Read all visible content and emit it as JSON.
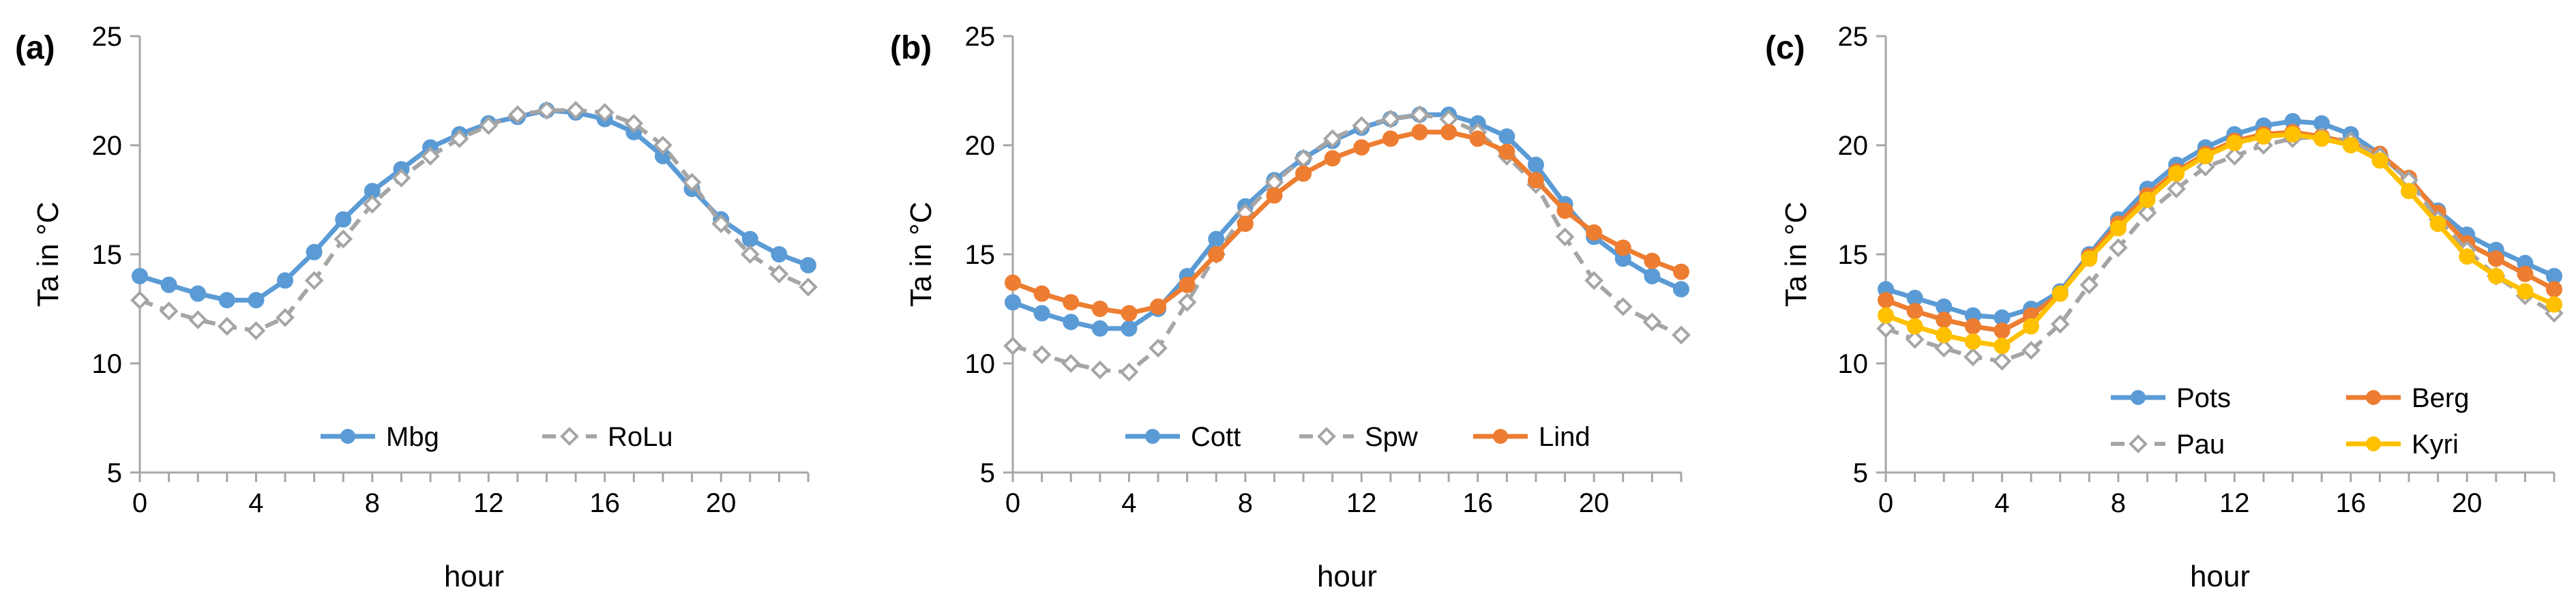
{
  "figure": {
    "panel_count": 3
  },
  "chart_data": [
    {
      "type": "line",
      "panel_label": "(a)",
      "xlabel": "hour",
      "ylabel": "Ta in °C",
      "xlim": [
        0,
        23
      ],
      "ylim": [
        5,
        25
      ],
      "xticks": [
        0,
        4,
        8,
        12,
        16,
        20
      ],
      "yticks": [
        5,
        10,
        15,
        20,
        25
      ],
      "x": [
        0,
        1,
        2,
        3,
        4,
        5,
        6,
        7,
        8,
        9,
        10,
        11,
        12,
        13,
        14,
        15,
        16,
        17,
        18,
        19,
        20,
        21,
        22,
        23
      ],
      "legend_position": "bottom-center",
      "series": [
        {
          "name": "Mbg",
          "color": "#5B9BD5",
          "style": "solid",
          "marker": "circle",
          "values": [
            14.0,
            13.6,
            13.2,
            12.9,
            12.9,
            13.8,
            15.1,
            16.6,
            17.9,
            18.9,
            19.9,
            20.5,
            21.0,
            21.3,
            21.6,
            21.5,
            21.2,
            20.6,
            19.5,
            18.0,
            16.6,
            15.7,
            15.0,
            14.5
          ]
        },
        {
          "name": "RoLu",
          "color": "#A5A5A5",
          "style": "dashed",
          "marker": "diamond-open",
          "values": [
            12.9,
            12.4,
            12.0,
            11.7,
            11.5,
            12.1,
            13.8,
            15.7,
            17.3,
            18.5,
            19.5,
            20.3,
            20.9,
            21.4,
            21.6,
            21.6,
            21.5,
            21.0,
            20.0,
            18.3,
            16.4,
            15.0,
            14.1,
            13.5
          ]
        }
      ]
    },
    {
      "type": "line",
      "panel_label": "(b)",
      "xlabel": "hour",
      "ylabel": "Ta in °C",
      "xlim": [
        0,
        23
      ],
      "ylim": [
        5,
        25
      ],
      "xticks": [
        0,
        4,
        8,
        12,
        16,
        20
      ],
      "yticks": [
        5,
        10,
        15,
        20,
        25
      ],
      "x": [
        0,
        1,
        2,
        3,
        4,
        5,
        6,
        7,
        8,
        9,
        10,
        11,
        12,
        13,
        14,
        15,
        16,
        17,
        18,
        19,
        20,
        21,
        22,
        23
      ],
      "legend_position": "bottom-center",
      "series": [
        {
          "name": "Cott",
          "color": "#5B9BD5",
          "style": "solid",
          "marker": "circle",
          "values": [
            12.8,
            12.3,
            11.9,
            11.6,
            11.6,
            12.5,
            14.0,
            15.7,
            17.2,
            18.4,
            19.4,
            20.2,
            20.8,
            21.2,
            21.4,
            21.4,
            21.0,
            20.4,
            19.1,
            17.3,
            15.8,
            14.8,
            14.0,
            13.4
          ]
        },
        {
          "name": "Spw",
          "color": "#A5A5A5",
          "style": "dashed",
          "marker": "diamond-open",
          "values": [
            10.8,
            10.4,
            10.0,
            9.7,
            9.6,
            10.7,
            12.8,
            15.0,
            16.9,
            18.3,
            19.4,
            20.3,
            20.9,
            21.2,
            21.4,
            21.2,
            20.6,
            19.5,
            18.2,
            15.8,
            13.8,
            12.6,
            11.9,
            11.3
          ]
        },
        {
          "name": "Lind",
          "color": "#ED7D31",
          "style": "solid",
          "marker": "circle",
          "values": [
            13.7,
            13.2,
            12.8,
            12.5,
            12.3,
            12.6,
            13.6,
            15.0,
            16.4,
            17.7,
            18.7,
            19.4,
            19.9,
            20.3,
            20.6,
            20.6,
            20.3,
            19.7,
            18.4,
            17.0,
            16.0,
            15.3,
            14.7,
            14.2
          ]
        }
      ]
    },
    {
      "type": "line",
      "panel_label": "(c)",
      "xlabel": "hour",
      "ylabel": "Ta in °C",
      "xlim": [
        0,
        23
      ],
      "ylim": [
        5,
        25
      ],
      "xticks": [
        0,
        4,
        8,
        12,
        16,
        20
      ],
      "yticks": [
        5,
        10,
        15,
        20,
        25
      ],
      "x": [
        0,
        1,
        2,
        3,
        4,
        5,
        6,
        7,
        8,
        9,
        10,
        11,
        12,
        13,
        14,
        15,
        16,
        17,
        18,
        19,
        20,
        21,
        22,
        23
      ],
      "legend_position": "bottom-right",
      "series": [
        {
          "name": "Pots",
          "color": "#5B9BD5",
          "style": "solid",
          "marker": "circle",
          "values": [
            13.4,
            13.0,
            12.6,
            12.2,
            12.1,
            12.5,
            13.3,
            15.0,
            16.6,
            18.0,
            19.1,
            19.9,
            20.5,
            20.9,
            21.1,
            21.0,
            20.5,
            19.6,
            18.4,
            17.0,
            15.9,
            15.2,
            14.6,
            14.0
          ]
        },
        {
          "name": "Berg",
          "color": "#ED7D31",
          "style": "solid",
          "marker": "circle",
          "values": [
            12.9,
            12.4,
            12.0,
            11.7,
            11.5,
            12.2,
            13.2,
            14.9,
            16.4,
            17.7,
            18.8,
            19.6,
            20.2,
            20.5,
            20.6,
            20.4,
            20.1,
            19.6,
            18.5,
            16.9,
            15.5,
            14.8,
            14.1,
            13.4
          ]
        },
        {
          "name": "Pau",
          "color": "#A5A5A5",
          "style": "dashed",
          "marker": "diamond-open",
          "values": [
            11.6,
            11.1,
            10.7,
            10.3,
            10.1,
            10.6,
            11.8,
            13.6,
            15.3,
            16.9,
            18.0,
            19.0,
            19.5,
            20.0,
            20.3,
            20.4,
            20.2,
            19.5,
            18.4,
            16.6,
            15.2,
            14.0,
            13.1,
            12.3
          ]
        },
        {
          "name": "Kyri",
          "color": "#FFC000",
          "style": "solid",
          "marker": "circle",
          "values": [
            12.2,
            11.7,
            11.3,
            11.0,
            10.8,
            11.7,
            13.2,
            14.8,
            16.2,
            17.5,
            18.7,
            19.5,
            20.1,
            20.4,
            20.5,
            20.3,
            20.0,
            19.3,
            17.9,
            16.4,
            14.9,
            14.0,
            13.3,
            12.7
          ]
        }
      ]
    }
  ]
}
